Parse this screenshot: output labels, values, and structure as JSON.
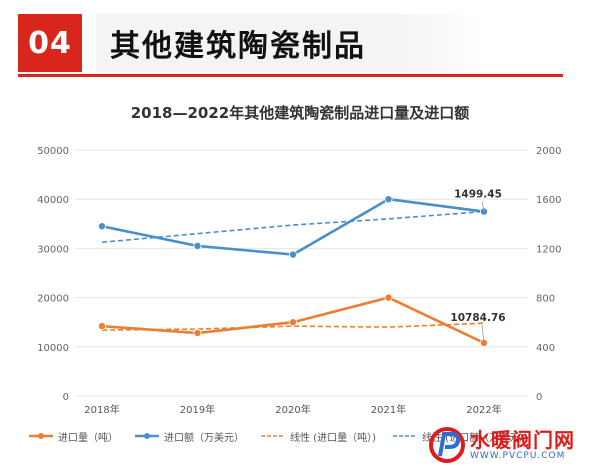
{
  "header": {
    "badge": "04",
    "title": "其他建筑陶瓷制品"
  },
  "watermark": {
    "name": "水暖阀门网",
    "url": "WWW.PVCPU.COM"
  },
  "colors": {
    "accent": "#d9261c",
    "orange": "#ed7d31",
    "blue": "#4a90c8"
  },
  "chart_data": {
    "type": "line",
    "title": "2018—2022年其他建筑陶瓷制品进口量及进口额",
    "categories": [
      "2018年",
      "2019年",
      "2020年",
      "2021年",
      "2022年"
    ],
    "y_left": {
      "min": 0,
      "max": 50000,
      "ticks": [
        0,
        10000,
        20000,
        30000,
        40000,
        50000
      ]
    },
    "y_right": {
      "min": 0,
      "max": 2000,
      "ticks": [
        0,
        400,
        800,
        1200,
        1600,
        2000
      ]
    },
    "grid": true,
    "legend_position": "bottom",
    "series": [
      {
        "name": "进口量（吨）",
        "axis": "left",
        "color": "#ed7d31",
        "style": "solid",
        "marker": true,
        "values": [
          14200,
          12800,
          15000,
          20000,
          10784.76
        ]
      },
      {
        "name": "进口额（万美元）",
        "axis": "right",
        "color": "#4a90c8",
        "style": "solid",
        "marker": true,
        "values": [
          1380,
          1220,
          1150,
          1600,
          1499.45
        ]
      },
      {
        "name": "线性 (进口量（吨）)",
        "axis": "left",
        "color": "#ed7d31",
        "style": "dashed",
        "marker": false,
        "values": [
          13400,
          13600,
          14200,
          14000,
          14800
        ]
      },
      {
        "name": "线性 (进口额（万美元）)",
        "axis": "right",
        "color": "#4a90c8",
        "style": "dashed",
        "marker": false,
        "values": [
          1250,
          1320,
          1390,
          1440,
          1500
        ]
      }
    ],
    "annotations": [
      {
        "series": 1,
        "index": 4,
        "text": "1499.45"
      },
      {
        "series": 0,
        "index": 4,
        "text": "10784.76"
      }
    ]
  }
}
